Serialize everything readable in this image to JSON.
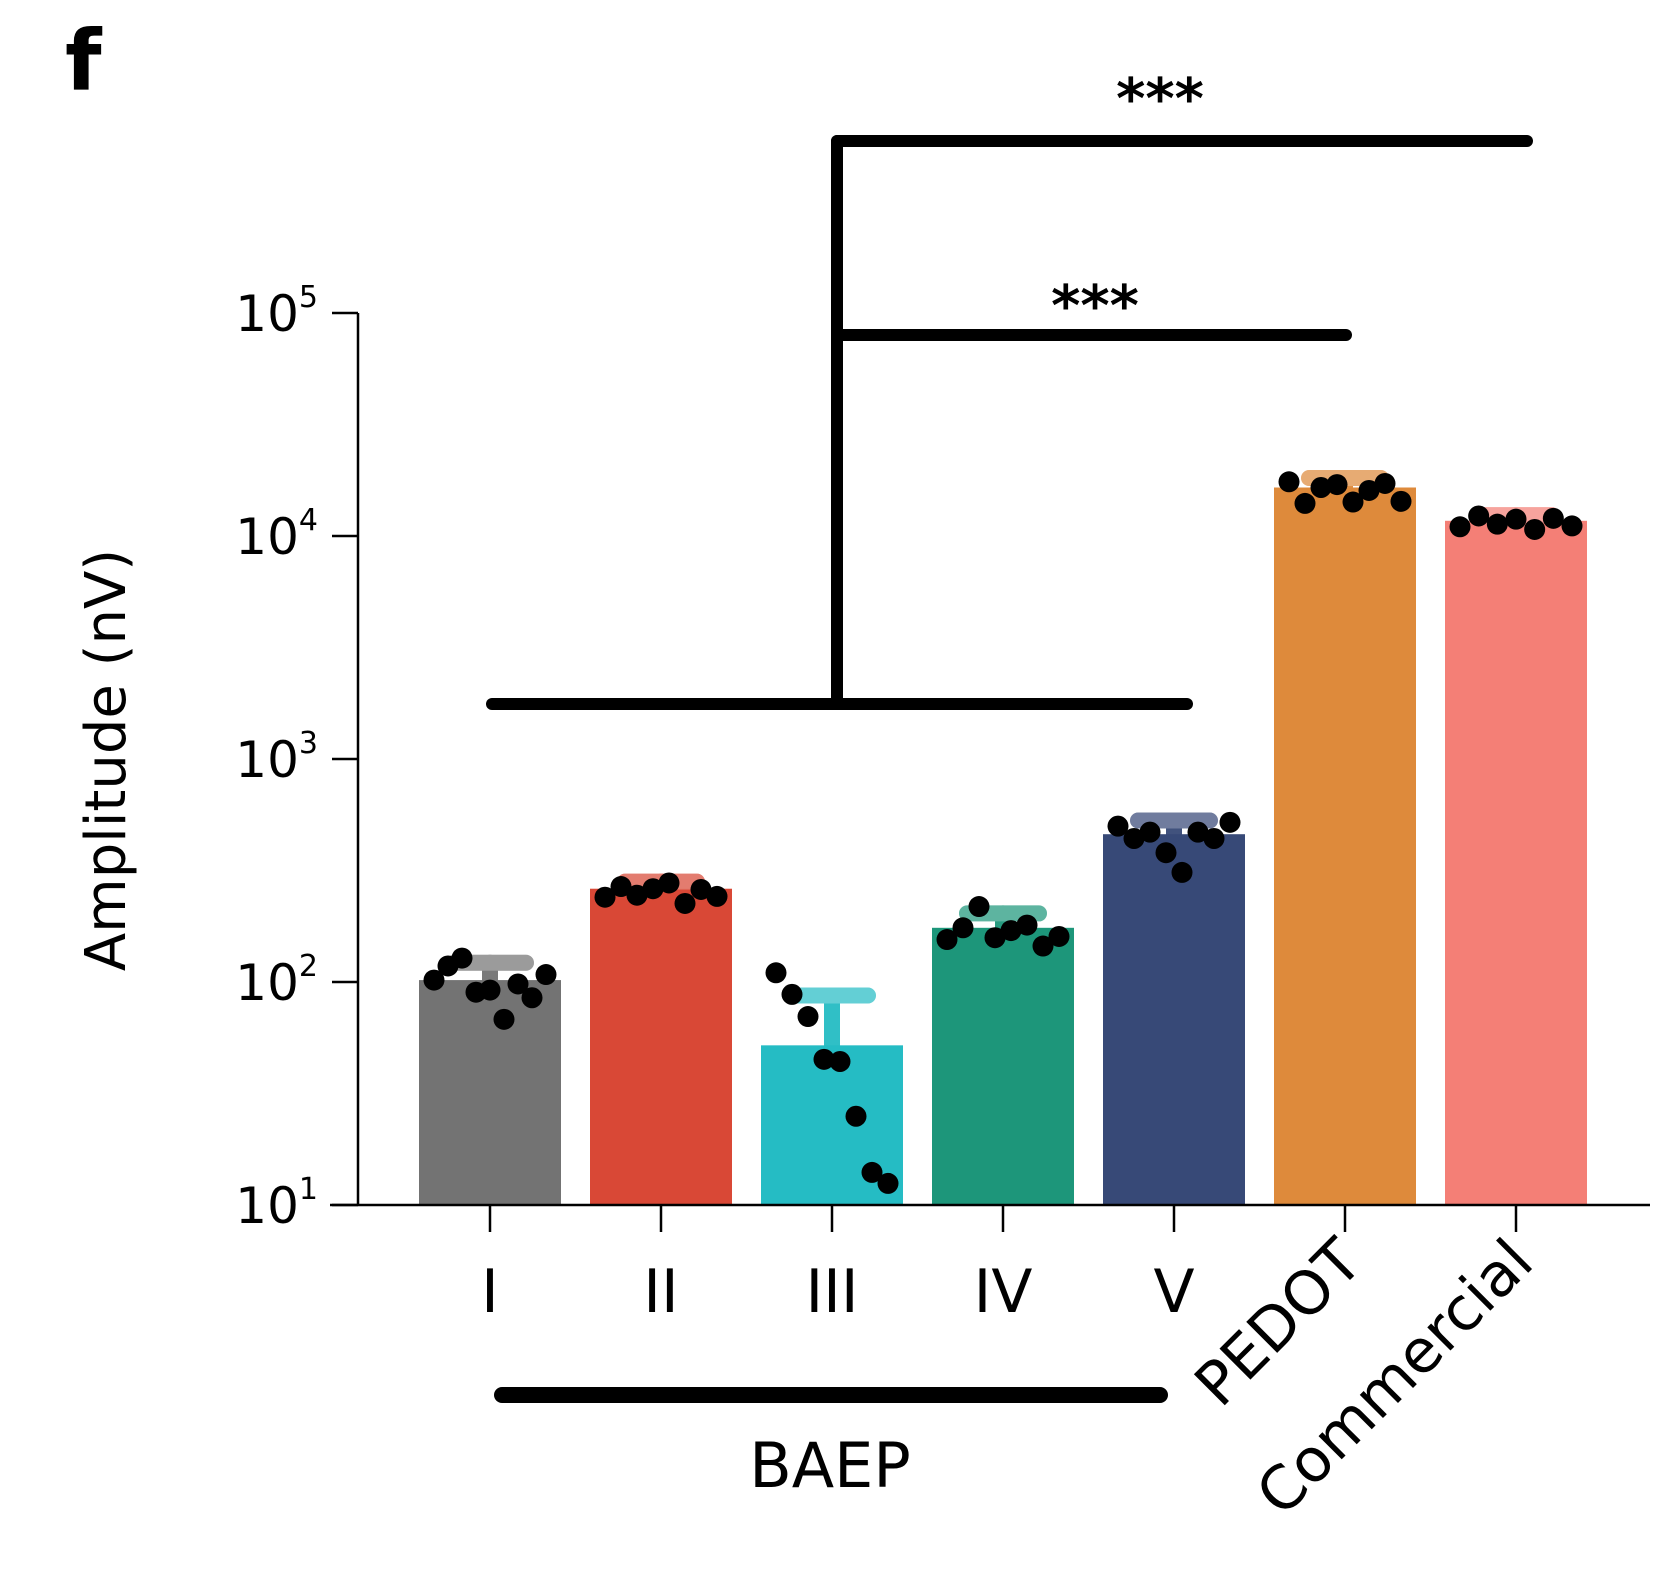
{
  "panel_label": "f",
  "chart_data": {
    "type": "bar",
    "title": "",
    "xlabel": "",
    "ylabel": "Amplitude (nV)",
    "yscale": "log",
    "ylim": [
      10,
      100000
    ],
    "yticks": [
      {
        "value": 10,
        "base": "10",
        "exp": "1"
      },
      {
        "value": 100,
        "base": "10",
        "exp": "2"
      },
      {
        "value": 1000,
        "base": "10",
        "exp": "3"
      },
      {
        "value": 10000,
        "base": "10",
        "exp": "4"
      },
      {
        "value": 100000,
        "base": "10",
        "exp": "5"
      }
    ],
    "categories": [
      "I",
      "II",
      "III",
      "IV",
      "V",
      "PEDOT",
      "Commercial"
    ],
    "rotated_categories": [
      "PEDOT",
      "Commercial"
    ],
    "values": [
      102,
      262,
      52,
      175,
      460,
      16500,
      11700
    ],
    "errors": [
      20,
      20,
      35,
      28,
      70,
      1700,
      700
    ],
    "colors": [
      "#737373",
      "#d94836",
      "#25bcc4",
      "#1d967a",
      "#374977",
      "#de8a3b",
      "#f47f76"
    ],
    "points": [
      [
        102,
        118,
        128,
        90,
        92,
        68,
        98,
        85,
        108
      ],
      [
        240,
        268,
        245,
        262,
        278,
        225,
        260,
        242
      ],
      [
        110,
        88,
        70,
        45,
        44,
        25,
        14,
        12.5
      ],
      [
        155,
        175,
        218,
        158,
        170,
        180,
        145,
        160
      ],
      [
        500,
        440,
        470,
        380,
        310,
        470,
        440,
        520
      ],
      [
        17500,
        14000,
        16500,
        17000,
        14200,
        16000,
        17200,
        14300
      ],
      [
        11000,
        12300,
        11300,
        11900,
        10700,
        12000,
        11100
      ]
    ],
    "group_label": "BAEP",
    "significance": [
      {
        "label": "***",
        "from": "BAEP",
        "to": "Commercial"
      },
      {
        "label": "***",
        "from": "BAEP",
        "to": "PEDOT"
      }
    ],
    "grid": false
  }
}
